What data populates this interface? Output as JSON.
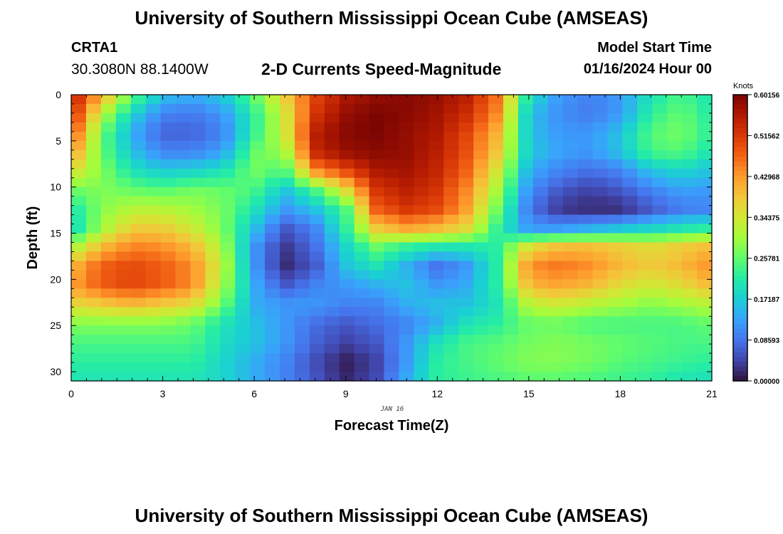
{
  "header": {
    "title": "University of Southern Mississippi Ocean Cube (AMSEAS)",
    "station_id": "CRTA1",
    "coordinates": "30.3080N  88.1400W",
    "subtitle": "2-D Currents Speed-Magnitude",
    "model_start_label": "Model Start Time",
    "model_start_value": "01/16/2024 Hour 00"
  },
  "footer": {
    "title": "University of Southern Mississippi Ocean Cube (AMSEAS)"
  },
  "chart_data": {
    "type": "heatmap",
    "title": "2-D Currents Speed-Magnitude",
    "xlabel": "Forecast Time(Z)",
    "ylabel": "Depth (ft)",
    "x_date_label": "JAN 16",
    "xlim": [
      0,
      21
    ],
    "ylim": [
      31,
      0
    ],
    "x_ticks": [
      0,
      3,
      6,
      9,
      12,
      15,
      18,
      21
    ],
    "x_tick_labels": [
      "0",
      "3",
      "6",
      "9",
      "12",
      "15",
      "18",
      "21"
    ],
    "y_ticks": [
      0,
      5,
      10,
      15,
      20,
      25,
      30
    ],
    "y_tick_labels": [
      "0",
      "5",
      "10",
      "15",
      "20",
      "25",
      "30"
    ],
    "colorbar": {
      "unit_label": "Knots",
      "min": 0.0,
      "max": 0.60156,
      "tick_labels": [
        "0.60156",
        "0.51562",
        "0.42968",
        "0.34375",
        "0.25781",
        "0.17187",
        "0.08593",
        "0.00000"
      ],
      "colormap": [
        "#30123b",
        "#4145ab",
        "#4675ed",
        "#39a2fc",
        "#1bcfd4",
        "#24eca6",
        "#61fc6c",
        "#a4fc3c",
        "#d1e834",
        "#f3c63a",
        "#fe9b2d",
        "#f36315",
        "#d93806",
        "#b11901",
        "#7a0402"
      ]
    },
    "value_grid_note": "rows = depth from 0 to 31 ft (2 ft steps), columns = forecast hour 0 to 21 (1 h steps)",
    "values": [
      [
        0.56,
        0.42,
        0.26,
        0.16,
        0.14,
        0.17,
        0.26,
        0.38,
        0.5,
        0.56,
        0.58,
        0.59,
        0.58,
        0.55,
        0.46,
        0.2,
        0.12,
        0.1,
        0.12,
        0.2,
        0.24,
        0.2
      ],
      [
        0.54,
        0.32,
        0.18,
        0.1,
        0.09,
        0.12,
        0.22,
        0.34,
        0.52,
        0.58,
        0.6,
        0.59,
        0.57,
        0.53,
        0.44,
        0.16,
        0.11,
        0.09,
        0.12,
        0.22,
        0.26,
        0.21
      ],
      [
        0.5,
        0.26,
        0.14,
        0.07,
        0.07,
        0.1,
        0.22,
        0.34,
        0.55,
        0.59,
        0.6,
        0.58,
        0.56,
        0.5,
        0.4,
        0.16,
        0.12,
        0.12,
        0.16,
        0.25,
        0.27,
        0.22
      ],
      [
        0.44,
        0.26,
        0.16,
        0.1,
        0.1,
        0.13,
        0.26,
        0.3,
        0.54,
        0.58,
        0.59,
        0.58,
        0.55,
        0.49,
        0.38,
        0.17,
        0.13,
        0.12,
        0.16,
        0.24,
        0.25,
        0.2
      ],
      [
        0.36,
        0.28,
        0.2,
        0.17,
        0.18,
        0.2,
        0.27,
        0.24,
        0.44,
        0.5,
        0.56,
        0.57,
        0.54,
        0.47,
        0.34,
        0.14,
        0.1,
        0.08,
        0.1,
        0.16,
        0.18,
        0.16
      ],
      [
        0.26,
        0.28,
        0.26,
        0.25,
        0.27,
        0.26,
        0.24,
        0.16,
        0.24,
        0.36,
        0.52,
        0.55,
        0.52,
        0.44,
        0.3,
        0.11,
        0.06,
        0.04,
        0.06,
        0.1,
        0.13,
        0.12
      ],
      [
        0.2,
        0.28,
        0.32,
        0.32,
        0.3,
        0.27,
        0.2,
        0.12,
        0.16,
        0.24,
        0.48,
        0.52,
        0.5,
        0.42,
        0.26,
        0.09,
        0.03,
        0.02,
        0.02,
        0.06,
        0.09,
        0.1
      ],
      [
        0.18,
        0.3,
        0.38,
        0.38,
        0.34,
        0.27,
        0.16,
        0.06,
        0.1,
        0.22,
        0.38,
        0.42,
        0.4,
        0.36,
        0.22,
        0.12,
        0.12,
        0.14,
        0.16,
        0.18,
        0.2,
        0.22
      ],
      [
        0.3,
        0.4,
        0.45,
        0.44,
        0.4,
        0.3,
        0.12,
        0.03,
        0.08,
        0.18,
        0.26,
        0.22,
        0.2,
        0.2,
        0.22,
        0.36,
        0.4,
        0.4,
        0.38,
        0.36,
        0.38,
        0.4
      ],
      [
        0.4,
        0.48,
        0.5,
        0.48,
        0.44,
        0.32,
        0.12,
        0.02,
        0.06,
        0.16,
        0.2,
        0.14,
        0.08,
        0.12,
        0.22,
        0.44,
        0.46,
        0.44,
        0.4,
        0.38,
        0.4,
        0.44
      ],
      [
        0.42,
        0.48,
        0.5,
        0.48,
        0.44,
        0.3,
        0.14,
        0.06,
        0.1,
        0.12,
        0.14,
        0.16,
        0.12,
        0.14,
        0.22,
        0.4,
        0.42,
        0.4,
        0.36,
        0.34,
        0.36,
        0.4
      ],
      [
        0.36,
        0.38,
        0.4,
        0.38,
        0.36,
        0.26,
        0.14,
        0.12,
        0.12,
        0.1,
        0.1,
        0.14,
        0.16,
        0.16,
        0.2,
        0.32,
        0.34,
        0.32,
        0.3,
        0.28,
        0.3,
        0.32
      ],
      [
        0.28,
        0.28,
        0.28,
        0.28,
        0.26,
        0.2,
        0.16,
        0.12,
        0.08,
        0.06,
        0.08,
        0.1,
        0.14,
        0.2,
        0.22,
        0.26,
        0.26,
        0.24,
        0.24,
        0.24,
        0.24,
        0.26
      ],
      [
        0.24,
        0.24,
        0.24,
        0.24,
        0.24,
        0.19,
        0.16,
        0.12,
        0.07,
        0.04,
        0.06,
        0.12,
        0.2,
        0.24,
        0.25,
        0.27,
        0.28,
        0.27,
        0.26,
        0.25,
        0.24,
        0.24
      ],
      [
        0.22,
        0.22,
        0.22,
        0.22,
        0.22,
        0.18,
        0.14,
        0.1,
        0.05,
        0.01,
        0.04,
        0.12,
        0.22,
        0.24,
        0.26,
        0.28,
        0.28,
        0.27,
        0.25,
        0.24,
        0.23,
        0.22
      ],
      [
        0.2,
        0.2,
        0.2,
        0.2,
        0.2,
        0.18,
        0.14,
        0.1,
        0.06,
        0.02,
        0.05,
        0.14,
        0.22,
        0.23,
        0.24,
        0.25,
        0.25,
        0.24,
        0.23,
        0.22,
        0.2,
        0.19
      ]
    ]
  }
}
